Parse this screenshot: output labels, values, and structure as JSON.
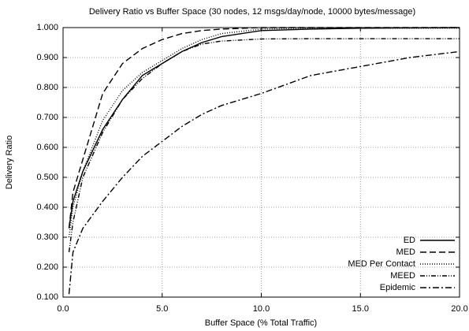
{
  "chart_data": {
    "type": "line",
    "title": "Delivery Ratio vs Buffer Space (30 nodes, 12 msgs/day/node, 10000 bytes/message)",
    "xlabel": "Buffer Space (% Total Traffic)",
    "ylabel": "Delivery Ratio",
    "x": [
      0.3,
      0.5,
      1,
      2,
      3,
      4,
      5,
      6,
      7,
      8,
      10,
      12.5,
      15,
      17.5,
      20
    ],
    "series": [
      {
        "name": "ED",
        "color": "#000000",
        "dash": "none",
        "values": [
          0.33,
          0.42,
          0.52,
          0.66,
          0.76,
          0.84,
          0.88,
          0.92,
          0.95,
          0.97,
          0.99,
          0.995,
          0.998,
          0.999,
          1.0
        ]
      },
      {
        "name": "MED",
        "color": "#000000",
        "dash": "8,4",
        "values": [
          0.33,
          0.45,
          0.56,
          0.78,
          0.88,
          0.93,
          0.96,
          0.98,
          0.99,
          0.995,
          1.0,
          1.0,
          1.0,
          1.0,
          1.0
        ]
      },
      {
        "name": "MED Per Contact",
        "color": "#000000",
        "dash": "1,2",
        "values": [
          0.3,
          0.4,
          0.52,
          0.69,
          0.79,
          0.85,
          0.89,
          0.93,
          0.96,
          0.98,
          0.995,
          0.998,
          0.998,
          0.998,
          0.998
        ]
      },
      {
        "name": "MEED",
        "color": "#000000",
        "dash": "6,2,1,2,1,2",
        "values": [
          0.25,
          0.35,
          0.5,
          0.65,
          0.76,
          0.83,
          0.88,
          0.92,
          0.945,
          0.955,
          0.962,
          0.963,
          0.963,
          0.963,
          0.963
        ]
      },
      {
        "name": "Epidemic",
        "color": "#000000",
        "dash": "8,3,2,3",
        "values": [
          0.11,
          0.25,
          0.33,
          0.42,
          0.5,
          0.57,
          0.62,
          0.67,
          0.71,
          0.74,
          0.78,
          0.84,
          0.87,
          0.9,
          0.92
        ]
      }
    ],
    "xlim": [
      0,
      20
    ],
    "xticks": [
      {
        "value": 0,
        "label": "0.0"
      },
      {
        "value": 5,
        "label": "5.0"
      },
      {
        "value": 10,
        "label": "10.0"
      },
      {
        "value": 15,
        "label": "15.0"
      },
      {
        "value": 20,
        "label": "20.0"
      }
    ],
    "ylim": [
      0.1,
      1.0
    ],
    "yticks": [
      {
        "value": 0.1,
        "label": "0.100"
      },
      {
        "value": 0.2,
        "label": "0.200"
      },
      {
        "value": 0.3,
        "label": "0.300"
      },
      {
        "value": 0.4,
        "label": "0.400"
      },
      {
        "value": 0.5,
        "label": "0.500"
      },
      {
        "value": 0.6,
        "label": "0.600"
      },
      {
        "value": 0.7,
        "label": "0.700"
      },
      {
        "value": 0.8,
        "label": "0.800"
      },
      {
        "value": 0.9,
        "label": "0.900"
      },
      {
        "value": 1.0,
        "label": "1.000"
      }
    ],
    "grid": true,
    "legend": "lower right"
  }
}
